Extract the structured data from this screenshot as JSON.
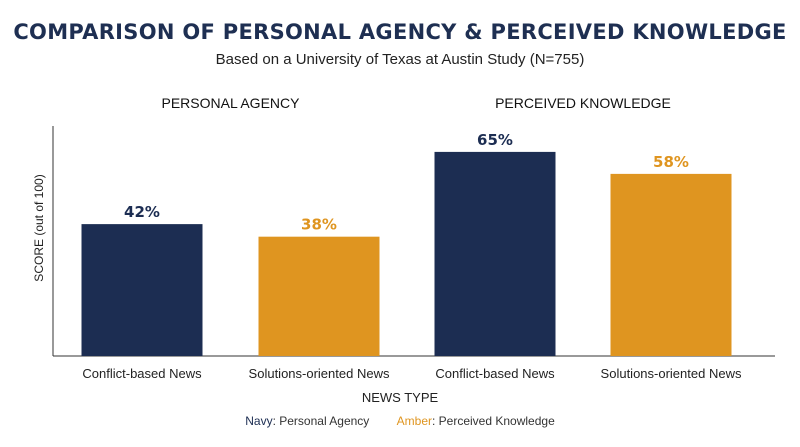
{
  "title": "COMPARISON OF PERSONAL AGENCY & PERCEIVED KNOWLEDGE",
  "subtitle": "Based on a University of Texas at Austin Study (N=755)",
  "legend": {
    "navy_key": "Navy",
    "navy_label": ": Personal Agency",
    "amber_key": "Amber",
    "amber_label": ": Perceived Knowledge"
  },
  "colors": {
    "navy": "#1c2d52",
    "amber": "#df9520"
  },
  "chart_data": {
    "type": "bar",
    "ylabel": "SCORE (out of 100)",
    "xlabel": "NEWS TYPE",
    "ylim": [
      0,
      100
    ],
    "groups": [
      {
        "name": "PERSONAL AGENCY",
        "bars": [
          {
            "category": "Conflict-based News",
            "value": 42,
            "label": "42%",
            "color": "navy"
          },
          {
            "category": "Solutions-oriented News",
            "value": 38,
            "label": "38%",
            "color": "amber"
          }
        ]
      },
      {
        "name": "PERCEIVED KNOWLEDGE",
        "bars": [
          {
            "category": "Conflict-based News",
            "value": 65,
            "label": "65%",
            "color": "navy"
          },
          {
            "category": "Solutions-oriented News",
            "value": 58,
            "label": "58%",
            "color": "amber"
          }
        ]
      }
    ]
  }
}
